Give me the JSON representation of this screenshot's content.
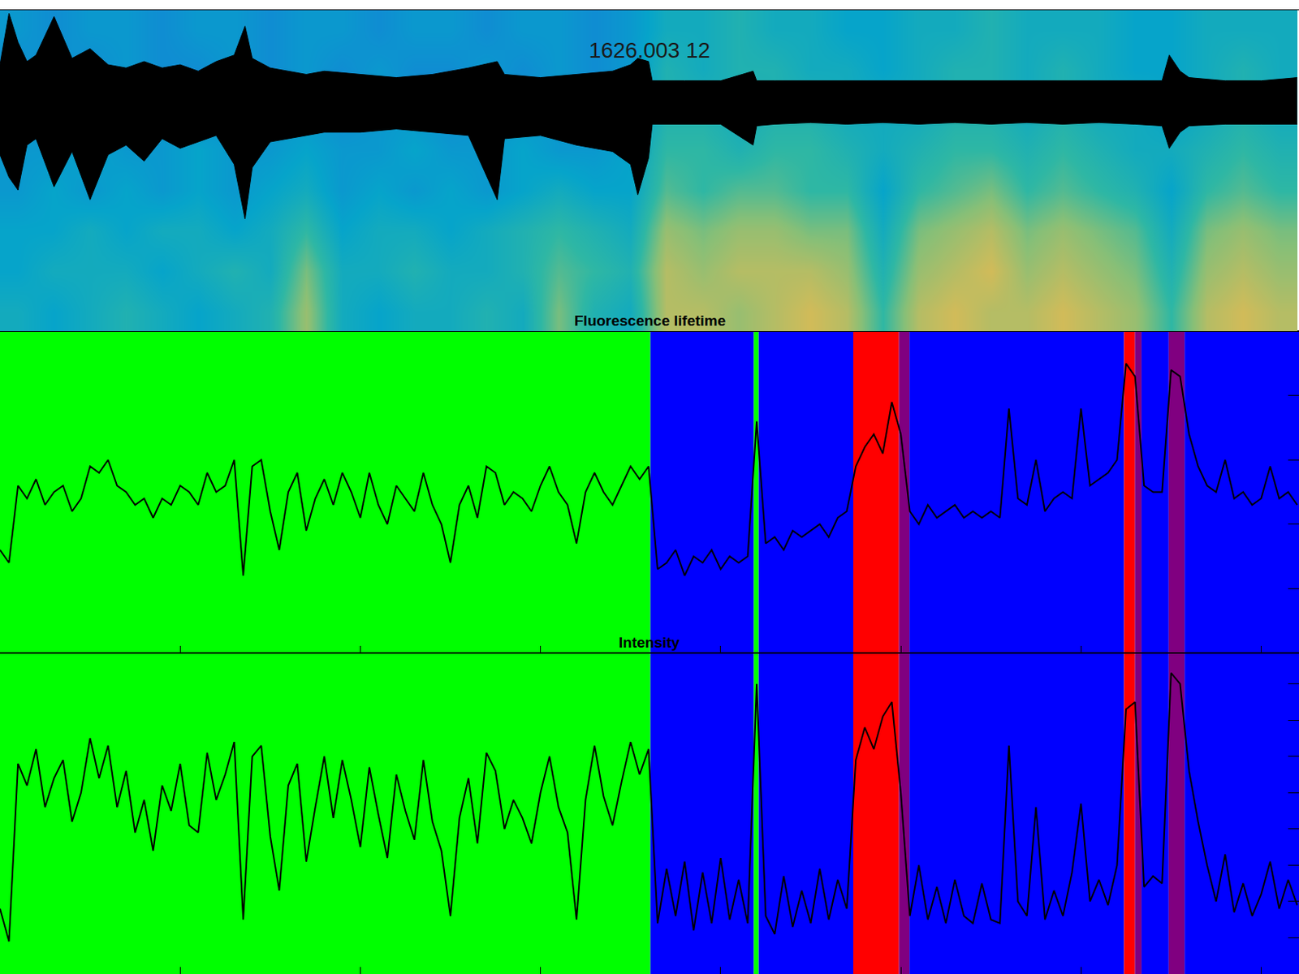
{
  "chart_data": [
    {
      "type": "heatmap",
      "title": "1626.003 12",
      "x": [
        0.1,
        0.3,
        0.5,
        0.7,
        0.9,
        1.1,
        1.3,
        1.5,
        1.7,
        1.9,
        2.1,
        2.3,
        2.5,
        2.7,
        2.9,
        3.1,
        3.3,
        3.5,
        3.7,
        3.9,
        4.1,
        4.3,
        4.5,
        4.7,
        4.9,
        5.1,
        5.3,
        5.5,
        5.7,
        5.9,
        6.1,
        6.3,
        6.5,
        6.7,
        6.9,
        7.1
      ],
      "y": [
        0.625,
        1.875,
        3.125,
        4.375,
        5.625,
        6.875,
        8.125,
        9.375
      ],
      "z": [
        [
          0.5,
          0.45,
          0.5,
          0.55,
          0.5,
          0.45,
          0.5,
          0.55,
          0.75,
          0.5,
          0.45,
          0.5,
          0.5,
          0.55,
          0.5,
          0.7,
          0.55,
          0.5,
          0.8,
          0.8,
          0.75,
          0.8,
          0.85,
          0.8,
          0.6,
          0.8,
          0.85,
          0.8,
          0.8,
          0.85,
          0.8,
          0.75,
          0.6,
          0.8,
          0.85,
          0.8
        ],
        [
          0.45,
          0.5,
          0.5,
          0.5,
          0.45,
          0.5,
          0.55,
          0.5,
          0.7,
          0.5,
          0.5,
          0.55,
          0.5,
          0.5,
          0.55,
          0.65,
          0.6,
          0.55,
          0.8,
          0.75,
          0.8,
          0.8,
          0.8,
          0.75,
          0.55,
          0.75,
          0.8,
          0.85,
          0.75,
          0.8,
          0.75,
          0.7,
          0.55,
          0.75,
          0.8,
          0.75
        ],
        [
          0.45,
          0.45,
          0.5,
          0.45,
          0.5,
          0.5,
          0.45,
          0.5,
          0.6,
          0.45,
          0.5,
          0.5,
          0.45,
          0.5,
          0.55,
          0.6,
          0.55,
          0.5,
          0.75,
          0.7,
          0.75,
          0.75,
          0.7,
          0.7,
          0.5,
          0.7,
          0.75,
          0.8,
          0.7,
          0.75,
          0.7,
          0.65,
          0.5,
          0.7,
          0.75,
          0.7
        ],
        [
          0.4,
          0.45,
          0.4,
          0.45,
          0.4,
          0.45,
          0.4,
          0.45,
          0.5,
          0.4,
          0.45,
          0.4,
          0.45,
          0.4,
          0.45,
          0.5,
          0.45,
          0.45,
          0.65,
          0.6,
          0.65,
          0.65,
          0.6,
          0.6,
          0.45,
          0.6,
          0.65,
          0.7,
          0.6,
          0.65,
          0.6,
          0.55,
          0.45,
          0.6,
          0.65,
          0.6
        ],
        [
          0.4,
          0.4,
          0.45,
          0.4,
          0.4,
          0.45,
          0.4,
          0.4,
          0.45,
          0.4,
          0.4,
          0.45,
          0.4,
          0.4,
          0.45,
          0.4,
          0.4,
          0.45,
          0.6,
          0.6,
          0.55,
          0.6,
          0.6,
          0.55,
          0.5,
          0.55,
          0.6,
          0.6,
          0.55,
          0.6,
          0.55,
          0.5,
          0.5,
          0.55,
          0.6,
          0.55
        ],
        [
          0.4,
          0.35,
          0.4,
          0.4,
          0.4,
          0.35,
          0.4,
          0.4,
          0.4,
          0.35,
          0.4,
          0.4,
          0.35,
          0.4,
          0.4,
          0.4,
          0.35,
          0.4,
          0.55,
          0.55,
          0.5,
          0.55,
          0.55,
          0.5,
          0.5,
          0.5,
          0.55,
          0.55,
          0.5,
          0.55,
          0.5,
          0.5,
          0.45,
          0.5,
          0.55,
          0.5
        ],
        [
          0.35,
          0.4,
          0.35,
          0.4,
          0.35,
          0.35,
          0.4,
          0.35,
          0.4,
          0.35,
          0.4,
          0.35,
          0.35,
          0.4,
          0.35,
          0.4,
          0.35,
          0.4,
          0.55,
          0.5,
          0.55,
          0.55,
          0.5,
          0.5,
          0.45,
          0.5,
          0.55,
          0.55,
          0.5,
          0.55,
          0.5,
          0.45,
          0.45,
          0.5,
          0.55,
          0.5
        ],
        [
          0.4,
          0.35,
          0.4,
          0.4,
          0.35,
          0.4,
          0.4,
          0.35,
          0.4,
          0.4,
          0.35,
          0.4,
          0.4,
          0.35,
          0.4,
          0.4,
          0.35,
          0.4,
          0.5,
          0.5,
          0.55,
          0.5,
          0.5,
          0.45,
          0.45,
          0.5,
          0.5,
          0.55,
          0.5,
          0.5,
          0.5,
          0.45,
          0.45,
          0.5,
          0.5,
          0.5
        ]
      ],
      "zlim": [
        0,
        1
      ],
      "xlim": [
        0,
        7.21
      ],
      "ylim": [
        0,
        10
      ],
      "tick_labels": false,
      "trace": {
        "color": "#000000",
        "x": [
          0,
          0.05,
          0.1,
          0.15,
          0.2,
          0.3,
          0.4,
          0.5,
          0.6,
          0.7,
          0.8,
          0.9,
          1.0,
          1.1,
          1.2,
          1.3,
          1.36,
          1.4,
          1.5,
          1.6,
          1.7,
          1.8,
          2.0,
          2.2,
          2.4,
          2.6,
          2.76,
          2.8,
          3.0,
          3.2,
          3.4,
          3.5,
          3.54,
          3.6,
          3.62,
          3.8,
          4.0,
          4.18,
          4.2,
          4.3,
          4.5,
          4.7,
          4.9,
          5.1,
          5.3,
          5.5,
          5.7,
          5.9,
          6.1,
          6.3,
          6.45,
          6.49,
          6.55,
          6.6,
          6.8,
          7.0,
          7.2
        ],
        "upper": [
          8.3,
          9.9,
          9.0,
          8.4,
          8.6,
          9.8,
          8.5,
          8.8,
          8.3,
          8.2,
          8.4,
          8.2,
          8.3,
          8.1,
          8.4,
          8.6,
          9.5,
          8.5,
          8.2,
          8.1,
          8.0,
          8.1,
          8.0,
          7.9,
          8.0,
          8.2,
          8.4,
          8.0,
          7.9,
          8.0,
          8.1,
          8.3,
          8.5,
          8.4,
          7.8,
          7.8,
          7.8,
          8.1,
          7.8,
          7.8,
          7.8,
          7.8,
          7.8,
          7.8,
          7.8,
          7.8,
          7.8,
          7.8,
          7.8,
          7.8,
          7.8,
          8.6,
          8.1,
          7.9,
          7.8,
          7.8,
          7.9
        ],
        "lower": [
          5.5,
          4.8,
          4.4,
          5.8,
          6.0,
          4.5,
          5.6,
          4.1,
          5.5,
          5.8,
          5.3,
          6.0,
          5.7,
          5.9,
          6.1,
          5.2,
          3.5,
          5.1,
          5.9,
          6.0,
          6.1,
          6.2,
          6.2,
          6.3,
          6.2,
          6.1,
          4.1,
          6.0,
          6.1,
          5.8,
          5.6,
          5.2,
          4.25,
          5.4,
          6.45,
          6.45,
          6.45,
          5.8,
          6.4,
          6.45,
          6.5,
          6.45,
          6.5,
          6.45,
          6.5,
          6.45,
          6.5,
          6.45,
          6.5,
          6.45,
          6.4,
          5.7,
          6.2,
          6.4,
          6.45,
          6.45,
          6.45
        ]
      }
    },
    {
      "type": "line",
      "title": "Fluorescence lifetime",
      "color": "#000000",
      "x": [
        0,
        0.05,
        0.1,
        0.15,
        0.2,
        0.25,
        0.3,
        0.35,
        0.4,
        0.45,
        0.5,
        0.55,
        0.6,
        0.65,
        0.7,
        0.75,
        0.8,
        0.85,
        0.9,
        0.95,
        1.0,
        1.05,
        1.1,
        1.15,
        1.2,
        1.25,
        1.3,
        1.35,
        1.4,
        1.45,
        1.5,
        1.55,
        1.6,
        1.65,
        1.7,
        1.75,
        1.8,
        1.85,
        1.9,
        1.95,
        2.0,
        2.05,
        2.1,
        2.15,
        2.2,
        2.25,
        2.3,
        2.35,
        2.4,
        2.45,
        2.5,
        2.55,
        2.6,
        2.65,
        2.7,
        2.75,
        2.8,
        2.85,
        2.9,
        2.95,
        3.0,
        3.05,
        3.1,
        3.15,
        3.2,
        3.25,
        3.3,
        3.35,
        3.4,
        3.45,
        3.5,
        3.55,
        3.6,
        3.65,
        3.7,
        3.75,
        3.8,
        3.85,
        3.9,
        3.95,
        4.0,
        4.05,
        4.1,
        4.15,
        4.2,
        4.25,
        4.3,
        4.35,
        4.4,
        4.45,
        4.5,
        4.55,
        4.6,
        4.65,
        4.7,
        4.75,
        4.8,
        4.85,
        4.9,
        4.95,
        5.0,
        5.05,
        5.1,
        5.15,
        5.2,
        5.25,
        5.3,
        5.35,
        5.4,
        5.45,
        5.5,
        5.55,
        5.6,
        5.65,
        5.7,
        5.75,
        5.8,
        5.85,
        5.9,
        5.95,
        6.0,
        6.05,
        6.1,
        6.15,
        6.2,
        6.25,
        6.3,
        6.35,
        6.4,
        6.45,
        6.5,
        6.55,
        6.6,
        6.65,
        6.7,
        6.75,
        6.8,
        6.85,
        6.9,
        6.95,
        7.0,
        7.05,
        7.1,
        7.15,
        7.2
      ],
      "values": [
        1.6,
        1.4,
        2.6,
        2.4,
        2.7,
        2.3,
        2.5,
        2.6,
        2.2,
        2.4,
        2.9,
        2.8,
        3.0,
        2.6,
        2.5,
        2.3,
        2.4,
        2.1,
        2.4,
        2.3,
        2.6,
        2.5,
        2.3,
        2.8,
        2.5,
        2.6,
        3.0,
        1.2,
        2.9,
        3.0,
        2.2,
        1.6,
        2.5,
        2.8,
        1.9,
        2.4,
        2.7,
        2.3,
        2.8,
        2.5,
        2.1,
        2.8,
        2.3,
        2.0,
        2.6,
        2.4,
        2.2,
        2.8,
        2.3,
        2.0,
        1.4,
        2.3,
        2.6,
        2.1,
        2.9,
        2.8,
        2.3,
        2.5,
        2.4,
        2.2,
        2.6,
        2.9,
        2.5,
        2.3,
        1.7,
        2.5,
        2.8,
        2.5,
        2.3,
        2.6,
        2.9,
        2.7,
        2.9,
        1.3,
        1.4,
        1.6,
        1.2,
        1.5,
        1.4,
        1.6,
        1.3,
        1.5,
        1.4,
        1.5,
        3.6,
        1.7,
        1.8,
        1.6,
        1.9,
        1.8,
        1.9,
        2.0,
        1.8,
        2.1,
        2.2,
        2.9,
        3.2,
        3.4,
        3.1,
        3.9,
        3.4,
        2.2,
        2.0,
        2.3,
        2.1,
        2.2,
        2.3,
        2.1,
        2.2,
        2.1,
        2.2,
        2.1,
        3.8,
        2.4,
        2.3,
        3.0,
        2.2,
        2.4,
        2.5,
        2.4,
        3.8,
        2.6,
        2.7,
        2.8,
        3.0,
        4.5,
        4.3,
        2.6,
        2.5,
        2.5,
        4.4,
        4.3,
        3.4,
        2.9,
        2.6,
        2.5,
        3.0,
        2.4,
        2.5,
        2.3,
        2.4,
        2.9,
        2.4,
        2.5,
        2.3
      ],
      "xlim": [
        0,
        7.21
      ],
      "xticks": [
        1,
        2,
        3,
        4,
        5,
        6,
        7
      ],
      "ylim": [
        0,
        5
      ],
      "yticks": [
        1,
        2,
        3,
        4
      ],
      "tick_labels": false,
      "states": [
        {
          "start": 0,
          "end": 3.61,
          "color": "#00ff00"
        },
        {
          "start": 3.61,
          "end": 4.184,
          "color": "#0000ff"
        },
        {
          "start": 4.184,
          "end": 4.211,
          "color": "#00ff00"
        },
        {
          "start": 4.211,
          "end": 4.736,
          "color": "#0000ff"
        },
        {
          "start": 4.736,
          "end": 4.989,
          "color": "#ff0000"
        },
        {
          "start": 4.989,
          "end": 5.048,
          "color": "#800080"
        },
        {
          "start": 5.048,
          "end": 6.239,
          "color": "#0000ff"
        },
        {
          "start": 6.239,
          "end": 6.299,
          "color": "#ff0000"
        },
        {
          "start": 6.299,
          "end": 6.336,
          "color": "#800080"
        },
        {
          "start": 6.336,
          "end": 6.487,
          "color": "#0000ff"
        },
        {
          "start": 6.487,
          "end": 6.575,
          "color": "#800080"
        },
        {
          "start": 6.575,
          "end": 7.21,
          "color": "#0000ff"
        }
      ]
    },
    {
      "type": "line",
      "title": "Intensity",
      "color": "#000000",
      "x": [
        0,
        0.05,
        0.1,
        0.15,
        0.2,
        0.25,
        0.3,
        0.35,
        0.4,
        0.45,
        0.5,
        0.55,
        0.6,
        0.65,
        0.7,
        0.75,
        0.8,
        0.85,
        0.9,
        0.95,
        1.0,
        1.05,
        1.1,
        1.15,
        1.2,
        1.25,
        1.3,
        1.35,
        1.4,
        1.45,
        1.5,
        1.55,
        1.6,
        1.65,
        1.7,
        1.75,
        1.8,
        1.85,
        1.9,
        1.95,
        2.0,
        2.05,
        2.1,
        2.15,
        2.2,
        2.25,
        2.3,
        2.35,
        2.4,
        2.45,
        2.5,
        2.55,
        2.6,
        2.65,
        2.7,
        2.75,
        2.8,
        2.85,
        2.9,
        2.95,
        3.0,
        3.05,
        3.1,
        3.15,
        3.2,
        3.25,
        3.3,
        3.35,
        3.4,
        3.45,
        3.5,
        3.55,
        3.6,
        3.65,
        3.7,
        3.75,
        3.8,
        3.85,
        3.9,
        3.95,
        4.0,
        4.05,
        4.1,
        4.15,
        4.2,
        4.25,
        4.3,
        4.35,
        4.4,
        4.45,
        4.5,
        4.55,
        4.6,
        4.65,
        4.7,
        4.75,
        4.8,
        4.85,
        4.9,
        4.95,
        5.0,
        5.05,
        5.1,
        5.15,
        5.2,
        5.25,
        5.3,
        5.35,
        5.4,
        5.45,
        5.5,
        5.55,
        5.6,
        5.65,
        5.7,
        5.75,
        5.8,
        5.85,
        5.9,
        5.95,
        6.0,
        6.05,
        6.1,
        6.15,
        6.2,
        6.25,
        6.3,
        6.35,
        6.4,
        6.45,
        6.5,
        6.55,
        6.6,
        6.65,
        6.7,
        6.75,
        6.8,
        6.85,
        6.9,
        6.95,
        7.0,
        7.05,
        7.1,
        7.15,
        7.2
      ],
      "values": [
        1.8,
        0.9,
        5.8,
        5.2,
        6.2,
        4.6,
        5.4,
        5.9,
        4.2,
        5.0,
        6.5,
        5.4,
        6.3,
        4.6,
        5.6,
        3.9,
        4.8,
        3.4,
        5.2,
        4.5,
        5.8,
        4.1,
        3.9,
        6.1,
        4.8,
        5.5,
        6.4,
        1.5,
        6.0,
        6.3,
        3.8,
        2.3,
        5.2,
        5.8,
        3.1,
        4.6,
        6.0,
        4.3,
        5.9,
        4.8,
        3.5,
        5.7,
        4.4,
        3.2,
        5.5,
        4.5,
        3.7,
        5.9,
        4.2,
        3.4,
        1.6,
        4.3,
        5.4,
        3.6,
        6.1,
        5.6,
        4.0,
        4.8,
        4.3,
        3.6,
        5.0,
        6.0,
        4.6,
        3.9,
        1.5,
        4.8,
        6.3,
        4.9,
        4.1,
        5.3,
        6.4,
        5.5,
        6.2,
        1.4,
        2.9,
        1.6,
        3.1,
        1.2,
        2.8,
        1.4,
        3.2,
        1.5,
        2.6,
        1.4,
        8.0,
        1.6,
        1.1,
        2.7,
        1.3,
        2.3,
        1.4,
        2.9,
        1.5,
        2.6,
        1.8,
        5.9,
        6.8,
        6.2,
        7.1,
        7.5,
        5.0,
        1.6,
        3.0,
        1.5,
        2.4,
        1.4,
        2.6,
        1.6,
        1.4,
        2.5,
        1.5,
        1.4,
        6.3,
        2.0,
        1.6,
        4.6,
        1.5,
        2.3,
        1.6,
        2.8,
        4.7,
        2.0,
        2.6,
        1.9,
        3.0,
        7.3,
        7.5,
        2.4,
        2.7,
        2.5,
        8.3,
        8.0,
        5.6,
        4.2,
        3.0,
        2.0,
        3.3,
        1.7,
        2.5,
        1.6,
        2.2,
        3.1,
        1.8,
        2.6,
        1.9
      ],
      "xlim": [
        0,
        7.21
      ],
      "xticks": [
        1,
        2,
        3,
        4,
        5,
        6,
        7
      ],
      "ylim": [
        0,
        8.86
      ],
      "yticks": [
        1,
        2,
        3,
        4,
        5,
        6,
        7,
        8
      ],
      "tick_labels": false,
      "states": [
        {
          "start": 0,
          "end": 3.61,
          "color": "#00ff00"
        },
        {
          "start": 3.61,
          "end": 4.184,
          "color": "#0000ff"
        },
        {
          "start": 4.184,
          "end": 4.211,
          "color": "#00ff00"
        },
        {
          "start": 4.211,
          "end": 4.736,
          "color": "#0000ff"
        },
        {
          "start": 4.736,
          "end": 4.989,
          "color": "#ff0000"
        },
        {
          "start": 4.989,
          "end": 5.048,
          "color": "#800080"
        },
        {
          "start": 5.048,
          "end": 6.239,
          "color": "#0000ff"
        },
        {
          "start": 6.239,
          "end": 6.299,
          "color": "#ff0000"
        },
        {
          "start": 6.299,
          "end": 6.336,
          "color": "#800080"
        },
        {
          "start": 6.336,
          "end": 6.487,
          "color": "#0000ff"
        },
        {
          "start": 6.487,
          "end": 6.575,
          "color": "#800080"
        },
        {
          "start": 6.575,
          "end": 7.21,
          "color": "#0000ff"
        }
      ]
    }
  ]
}
